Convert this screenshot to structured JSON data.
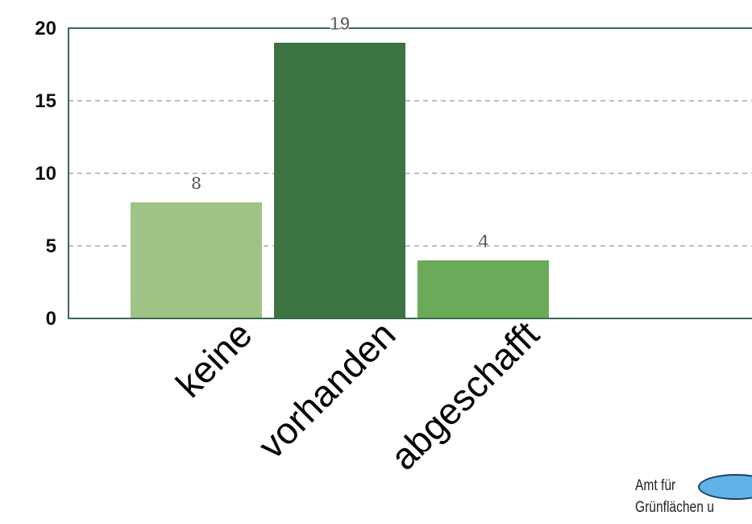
{
  "chart_data": {
    "type": "bar",
    "categories": [
      "keine",
      "vorhanden",
      "abgeschafft"
    ],
    "values": [
      8,
      19,
      4
    ],
    "data_labels": [
      "8",
      "19",
      "4"
    ],
    "ylim": [
      0,
      20
    ],
    "yticks": [
      0,
      5,
      10,
      15,
      20
    ],
    "ytick_labels": [
      "0",
      "5",
      "10",
      "15",
      "20"
    ],
    "grid": "dashed horizontal",
    "colors": [
      "#9fc384",
      "#3b7440",
      "#6aaa58"
    ],
    "frame_color": "#3a6b52",
    "grid_color": "#a8a8a8"
  },
  "logo": {
    "line1": "Amt für",
    "line2": "Grünflächen u",
    "mark_color": "#5fb3e6"
  }
}
